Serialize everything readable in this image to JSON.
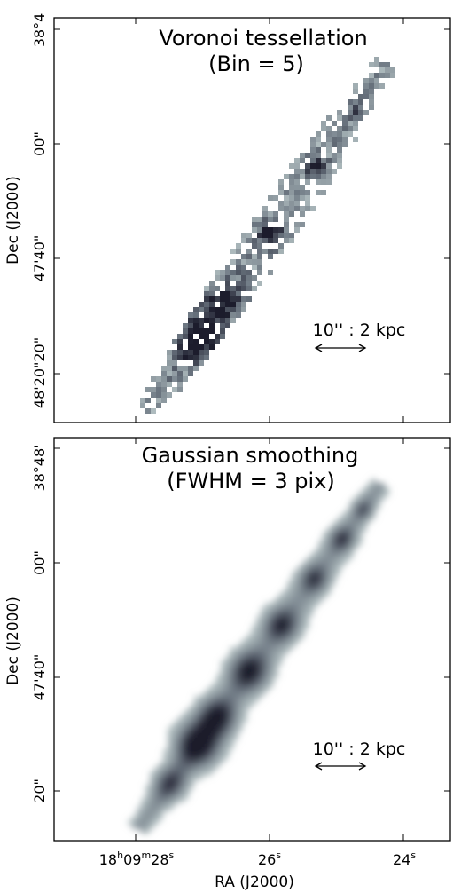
{
  "panels": [
    {
      "title_line1": "Voronoi tessellation",
      "title_line2": "(Bin = 5)",
      "ylabel": "Dec (J2000)",
      "yticks": [
        "38°4",
        "00\"",
        "47'40\"",
        "48'20\"20\""
      ],
      "scalebar": "10'' : 2 kpc",
      "style": "voronoi"
    },
    {
      "title_line1": "Gaussian smoothing",
      "title_line2": "(FWHM = 3 pix)",
      "ylabel": "Dec (J2000)",
      "yticks": [
        "38°48'",
        "00\"",
        "47'40\"",
        "20\""
      ],
      "scalebar": "10'' : 2 kpc",
      "style": "smooth"
    }
  ],
  "xaxis": {
    "label": "RA (J2000)",
    "ticks": [
      "18h09m28s",
      "26s",
      "24s"
    ]
  },
  "colors": {
    "dark": "#1c1c2c",
    "mid": "#6b7580",
    "light": "#c4d2d2",
    "frame": "#000000"
  }
}
